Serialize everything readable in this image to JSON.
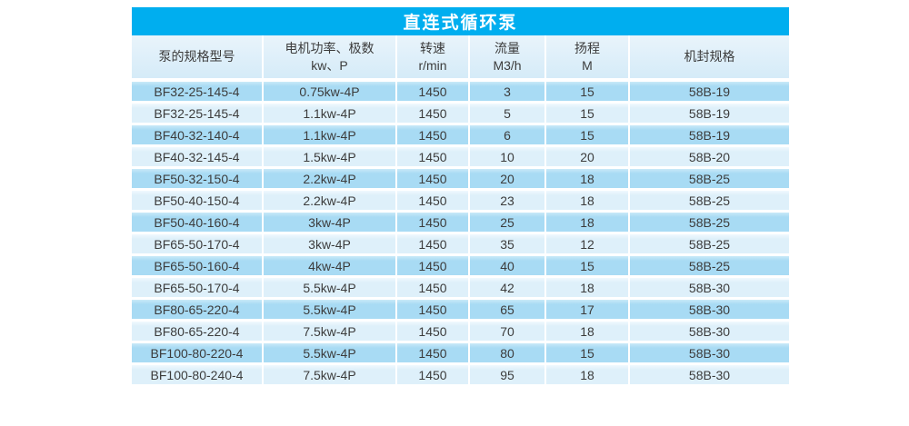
{
  "table": {
    "title": "直连式循环泵",
    "columns": [
      {
        "line1": "泵的规格型号",
        "line2": ""
      },
      {
        "line1": "电机功率、极数",
        "line2": "kw、P"
      },
      {
        "line1": "转速",
        "line2": "r/min"
      },
      {
        "line1": "流量",
        "line2": "M3/h"
      },
      {
        "line1": "扬程",
        "line2": "M"
      },
      {
        "line1": "机封规格",
        "line2": ""
      }
    ],
    "rows": [
      [
        "BF32-25-145-4",
        "0.75kw-4P",
        "1450",
        "3",
        "15",
        "58B-19"
      ],
      [
        "BF32-25-145-4",
        "1.1kw-4P",
        "1450",
        "5",
        "15",
        "58B-19"
      ],
      [
        "BF40-32-140-4",
        "1.1kw-4P",
        "1450",
        "6",
        "15",
        "58B-19"
      ],
      [
        "BF40-32-145-4",
        "1.5kw-4P",
        "1450",
        "10",
        "20",
        "58B-20"
      ],
      [
        "BF50-32-150-4",
        "2.2kw-4P",
        "1450",
        "20",
        "18",
        "58B-25"
      ],
      [
        "BF50-40-150-4",
        "2.2kw-4P",
        "1450",
        "23",
        "18",
        "58B-25"
      ],
      [
        "BF50-40-160-4",
        "3kw-4P",
        "1450",
        "25",
        "18",
        "58B-25"
      ],
      [
        "BF65-50-170-4",
        "3kw-4P",
        "1450",
        "35",
        "12",
        "58B-25"
      ],
      [
        "BF65-50-160-4",
        "4kw-4P",
        "1450",
        "40",
        "15",
        "58B-25"
      ],
      [
        "BF65-50-170-4",
        "5.5kw-4P",
        "1450",
        "42",
        "18",
        "58B-30"
      ],
      [
        "BF80-65-220-4",
        "5.5kw-4P",
        "1450",
        "65",
        "17",
        "58B-30"
      ],
      [
        "BF80-65-220-4",
        "7.5kw-4P",
        "1450",
        "70",
        "18",
        "58B-30"
      ],
      [
        "BF100-80-220-4",
        "5.5kw-4P",
        "1450",
        "80",
        "15",
        "58B-30"
      ],
      [
        "BF100-80-240-4",
        "7.5kw-4P",
        "1450",
        "95",
        "18",
        "58B-30"
      ]
    ]
  },
  "colors": {
    "title_bg": "#00AEEF",
    "title_fg": "#FFFFFF",
    "header_bg": "#D5EBF8",
    "row_dark": "#A8DBF4",
    "row_light": "#DEF0FA",
    "separator": "#FFFFFF",
    "text": "#3C3C3C"
  }
}
